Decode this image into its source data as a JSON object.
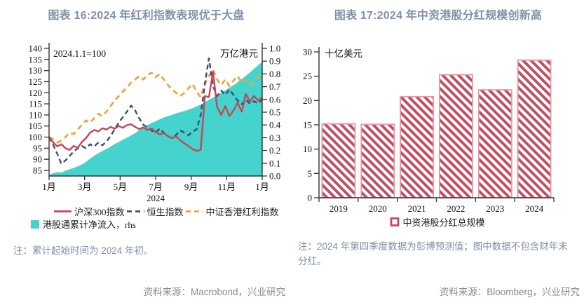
{
  "page": {
    "background": "#ffffff"
  },
  "figure_left": {
    "title": "图表 16:2024 年红利指数表现优于大盘",
    "note": "注：累计起始时间为 2024 年初。",
    "source": "资料来源：Macrobond，兴业研究"
  },
  "figure_right": {
    "title": "图表 17:2024 年中资港股分红规模创新高",
    "note": "注：2024 年第四季度数据为彭博预测值；图中数据不包含财年末分红。",
    "source": "资料来源：Bloomberg，兴业研究"
  },
  "colors": {
    "title": "#8191aa",
    "note": "#7e8da8",
    "source": "#87898e",
    "axis": "#333333",
    "tick_text": "#111111"
  },
  "chart_data": [
    {
      "type": "line",
      "title": "2024 年红利指数表现优于大盘",
      "index_note": "2024.1.1=100",
      "right_unit": "万亿港元",
      "x_caption": "2024",
      "x_tick_labels": [
        "1月",
        "3月",
        "5月",
        "7月",
        "9月",
        "11月",
        "1月"
      ],
      "x_tick_months": [
        0,
        2,
        4,
        6,
        8,
        10,
        12
      ],
      "left_axis": {
        "min": 85,
        "max": 140,
        "step": 5,
        "tick_labels": [
          "85",
          "90",
          "95",
          "100",
          "105",
          "110",
          "115",
          "120",
          "125",
          "130",
          "135",
          "140"
        ]
      },
      "right_axis": {
        "min": 0.0,
        "max": 1.0,
        "step": 0.1,
        "tick_labels": [
          "0.0",
          "0.1",
          "0.2",
          "0.3",
          "0.4",
          "0.5",
          "0.6",
          "0.7",
          "0.8",
          "0.9",
          "1.0"
        ]
      },
      "series": [
        {
          "name": "沪深300指数",
          "color": "#c64458",
          "style": "solid",
          "axis": "left",
          "values": [
            100,
            97.6,
            95.8,
            96.8,
            95.0,
            94.2,
            96.0,
            95.2,
            97.8,
            99.5,
            102.0,
            103.2,
            102.6,
            104.0,
            103.4,
            104.6,
            103.8,
            105.0,
            104.2,
            105.4,
            105.8,
            104.6,
            103.6,
            104.4,
            103.2,
            103.8,
            102.4,
            101.2,
            101.8,
            100.4,
            99.6,
            100.2,
            98.6,
            97.2,
            96.0,
            94.6,
            93.8,
            94.3,
            118.5,
            118.0,
            129.5,
            113.5,
            110.0,
            114.0,
            109.5,
            112.0,
            115.5,
            111.5,
            119.5,
            116.0,
            118.5,
            116.5,
            117.8
          ]
        },
        {
          "name": "恒生指数",
          "color": "#3e4d70",
          "style": "dashed",
          "axis": "left",
          "values": [
            100,
            96.5,
            92.5,
            88.0,
            89.5,
            91.5,
            93.5,
            95.0,
            96.0,
            95.0,
            96.8,
            95.8,
            97.5,
            96.3,
            98.0,
            100.5,
            103.5,
            106.5,
            109.0,
            111.5,
            114.2,
            112.0,
            108.5,
            105.5,
            104.5,
            103.0,
            102.0,
            103.8,
            102.0,
            100.5,
            99.5,
            101.0,
            103.0,
            102.0,
            100.8,
            102.5,
            103.5,
            110.0,
            124.0,
            135.5,
            123.0,
            118.5,
            121.0,
            119.0,
            121.5,
            119.0,
            116.5,
            114.8,
            117.0,
            115.0,
            116.2,
            115.2,
            117.0
          ]
        },
        {
          "name": "中证香港红利指数",
          "color": "#f6a03a",
          "style": "dashed",
          "axis": "left",
          "values": [
            100,
            99.0,
            97.6,
            98.4,
            100.0,
            102.0,
            101.4,
            103.5,
            105.5,
            107.5,
            106.5,
            108.5,
            110.5,
            109.5,
            111.5,
            114.0,
            116.5,
            118.5,
            120.5,
            122.5,
            124.5,
            126.0,
            127.5,
            126.0,
            128.0,
            129.0,
            127.0,
            128.5,
            126.0,
            123.5,
            121.5,
            120.0,
            118.5,
            120.0,
            122.0,
            124.0,
            120.5,
            118.0,
            124.0,
            127.5,
            130.5,
            126.0,
            123.5,
            126.0,
            123.0,
            125.5,
            127.5,
            124.5,
            126.0,
            123.5,
            125.5,
            127.0,
            129.5
          ]
        },
        {
          "name": "港股通累计净流入，rhs",
          "color": "#45d4cd",
          "style": "area",
          "axis": "right",
          "values": [
            0.01,
            0.022,
            0.03,
            0.026,
            0.042,
            0.052,
            0.063,
            0.076,
            0.09,
            0.11,
            0.135,
            0.158,
            0.178,
            0.195,
            0.212,
            0.23,
            0.25,
            0.266,
            0.284,
            0.3,
            0.318,
            0.336,
            0.358,
            0.378,
            0.398,
            0.415,
            0.43,
            0.444,
            0.458,
            0.469,
            0.479,
            0.49,
            0.5,
            0.51,
            0.52,
            0.531,
            0.545,
            0.56,
            0.578,
            0.598,
            0.615,
            0.634,
            0.654,
            0.672,
            0.69,
            0.712,
            0.735,
            0.76,
            0.785,
            0.812,
            0.84,
            0.868,
            0.895
          ]
        }
      ]
    },
    {
      "type": "bar",
      "title": "2024 年中资港股分红规模创新高",
      "unit_label": "十亿美元",
      "categories": [
        "2019",
        "2020",
        "2021",
        "2022",
        "2023",
        "2024"
      ],
      "values": [
        15.2,
        15.1,
        20.8,
        25.3,
        22.2,
        28.3
      ],
      "series_name": "中资港股分红总规模",
      "ylim": [
        0,
        30
      ],
      "y_tick_labels": [
        "0",
        "5",
        "10",
        "15",
        "20",
        "25",
        "30"
      ],
      "bar_color": "#c5485c",
      "bar_outline": "#ea96a3"
    }
  ]
}
